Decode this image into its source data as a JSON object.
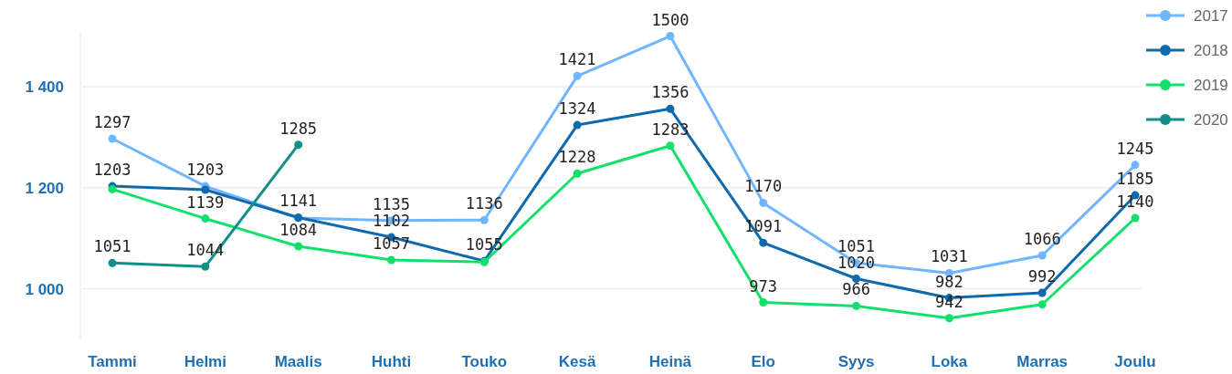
{
  "chart_data": {
    "type": "line",
    "ylim": [
      900,
      1510
    ],
    "categories": [
      "Tammi",
      "Helmi",
      "Maalis",
      "Huhti",
      "Touko",
      "Kesä",
      "Heinä",
      "Elo",
      "Syys",
      "Loka",
      "Marras",
      "Joulu"
    ],
    "yticks": [
      {
        "value": 1000,
        "label": "1 000"
      },
      {
        "value": 1200,
        "label": "1 200"
      },
      {
        "value": 1400,
        "label": "1 400"
      }
    ],
    "grid": "y",
    "legend": "top right",
    "marker": "circle",
    "line_style": "solid",
    "series": [
      {
        "name": "2017",
        "color": "#6fb6ff",
        "values": [
          1297,
          1203,
          1140,
          1135,
          1136,
          1421,
          1500,
          1170,
          1051,
          1031,
          1066,
          1245
        ],
        "value_labels": [
          "1297",
          "1203",
          null,
          "1135",
          "1136",
          "1421",
          "1500",
          "1170",
          "1051",
          "1031",
          "1066",
          "1245"
        ]
      },
      {
        "name": "2018",
        "color": "#0f6aad",
        "values": [
          1203,
          1196,
          1141,
          1102,
          1055,
          1324,
          1356,
          1091,
          1020,
          982,
          992,
          1185
        ],
        "value_labels": [
          "1203",
          null,
          "1141",
          "1102",
          "1055",
          "1324",
          "1356",
          "1091",
          "1020",
          "982",
          "992",
          "1185"
        ]
      },
      {
        "name": "2019",
        "color": "#12e06d",
        "values": [
          1197,
          1139,
          1084,
          1057,
          1053,
          1228,
          1283,
          973,
          966,
          942,
          969,
          1140
        ],
        "value_labels": [
          null,
          "1139",
          "1084",
          "1057",
          null,
          "1228",
          "1283",
          "973",
          "966",
          "942",
          null,
          "1140"
        ]
      },
      {
        "name": "2020",
        "color": "#0f8f8a",
        "values": [
          1051,
          1044,
          1285,
          null,
          null,
          null,
          null,
          null,
          null,
          null,
          null,
          null
        ],
        "value_labels": [
          "1051",
          "1044",
          "1285",
          null,
          null,
          null,
          null,
          null,
          null,
          null,
          null,
          null
        ]
      }
    ]
  }
}
